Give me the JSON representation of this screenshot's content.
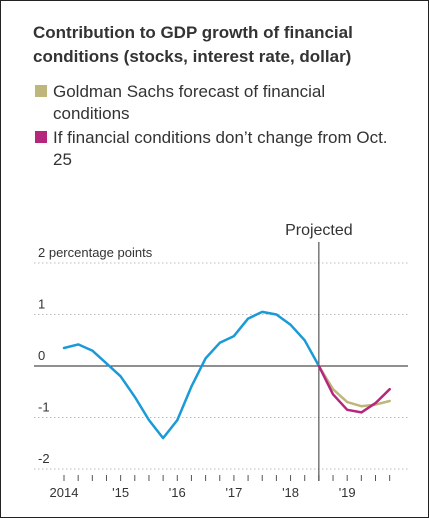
{
  "chart_data": {
    "type": "line",
    "title": "Contribution to GDP growth of financial conditions (stocks, interest rate, dollar)",
    "ylim": [
      -2,
      2
    ],
    "y_ticks": [
      {
        "value": 2,
        "label": "2 percentage points"
      },
      {
        "value": 1,
        "label": "1"
      },
      {
        "value": 0,
        "label": "0"
      },
      {
        "value": -1,
        "label": "-1"
      },
      {
        "value": -2,
        "label": "-2"
      }
    ],
    "xlim": [
      2014,
      2019.95
    ],
    "x_ticks": [
      {
        "value": 2014,
        "label": "2014"
      },
      {
        "value": 2015,
        "label": "'15"
      },
      {
        "value": 2016,
        "label": "'16"
      },
      {
        "value": 2017,
        "label": "'17"
      },
      {
        "value": 2018,
        "label": "'18"
      },
      {
        "value": 2019,
        "label": "'19"
      }
    ],
    "projection": {
      "x": 2018.5,
      "label": "Projected"
    },
    "series": [
      {
        "name": "",
        "color": "#1a9ad6",
        "points": [
          [
            2014.0,
            0.35
          ],
          [
            2014.25,
            0.42
          ],
          [
            2014.5,
            0.3
          ],
          [
            2014.75,
            0.05
          ],
          [
            2015.0,
            -0.2
          ],
          [
            2015.25,
            -0.6
          ],
          [
            2015.5,
            -1.05
          ],
          [
            2015.75,
            -1.4
          ],
          [
            2016.0,
            -1.05
          ],
          [
            2016.25,
            -0.4
          ],
          [
            2016.5,
            0.15
          ],
          [
            2016.75,
            0.45
          ],
          [
            2017.0,
            0.58
          ],
          [
            2017.25,
            0.92
          ],
          [
            2017.5,
            1.05
          ],
          [
            2017.75,
            1.0
          ],
          [
            2018.0,
            0.8
          ],
          [
            2018.25,
            0.5
          ],
          [
            2018.5,
            0.0
          ]
        ]
      },
      {
        "name": "Goldman Sachs forecast of financial conditions",
        "color": "#bfb67c",
        "points": [
          [
            2018.5,
            0.0
          ],
          [
            2018.75,
            -0.45
          ],
          [
            2019.0,
            -0.7
          ],
          [
            2019.25,
            -0.78
          ],
          [
            2019.5,
            -0.75
          ],
          [
            2019.75,
            -0.68
          ]
        ]
      },
      {
        "name": "If financial conditions don’t change from Oct. 25",
        "color": "#b5277c",
        "points": [
          [
            2018.5,
            0.0
          ],
          [
            2018.75,
            -0.55
          ],
          [
            2019.0,
            -0.85
          ],
          [
            2019.25,
            -0.9
          ],
          [
            2019.5,
            -0.72
          ],
          [
            2019.75,
            -0.45
          ]
        ]
      }
    ]
  }
}
